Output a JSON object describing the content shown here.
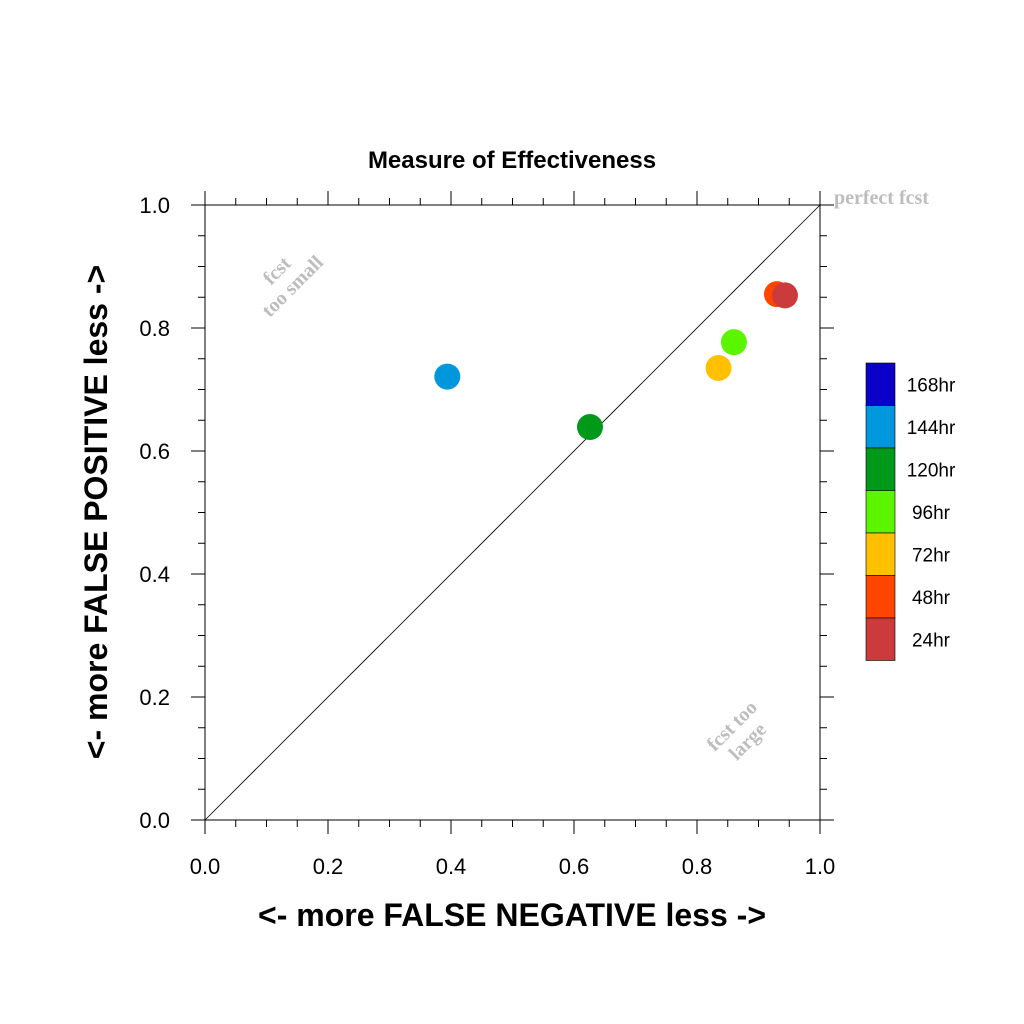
{
  "chart_data": {
    "type": "scatter",
    "title": "Measure of Effectiveness",
    "xlabel": "<- more   FALSE NEGATIVE   less ->",
    "ylabel": "<- more   FALSE POSITIVE   less ->",
    "xlim": [
      0.0,
      1.0
    ],
    "ylim": [
      0.0,
      1.0
    ],
    "x_ticks": [
      "0.0",
      "0.2",
      "0.4",
      "0.6",
      "0.8",
      "1.0"
    ],
    "y_ticks": [
      "0.0",
      "0.2",
      "0.4",
      "0.6",
      "0.8",
      "1.0"
    ],
    "reference_line": {
      "from": [
        0,
        0
      ],
      "to": [
        1,
        1
      ]
    },
    "annotations": [
      {
        "text": "perfect fcst",
        "x": 1.0,
        "y": 1.0
      },
      {
        "lines": [
          "fcst",
          "too small"
        ],
        "x": 0.13,
        "y": 0.88
      },
      {
        "lines": [
          "fcst too",
          "large"
        ],
        "x": 0.87,
        "y": 0.14
      }
    ],
    "series": [
      {
        "name": "24hr",
        "color": "#cc3b3b",
        "x": 0.943,
        "y": 0.853
      },
      {
        "name": "48hr",
        "color": "#ff4500",
        "x": 0.93,
        "y": 0.855
      },
      {
        "name": "72hr",
        "color": "#ffc000",
        "x": 0.835,
        "y": 0.735
      },
      {
        "name": "96hr",
        "color": "#5cf500",
        "x": 0.86,
        "y": 0.777
      },
      {
        "name": "120hr",
        "color": "#00991a",
        "x": 0.626,
        "y": 0.639
      },
      {
        "name": "144hr",
        "color": "#0097dc",
        "x": 0.394,
        "y": 0.721
      }
    ],
    "legend": {
      "placement": "right",
      "entries": [
        {
          "label": "168hr",
          "color": "#0a00c8"
        },
        {
          "label": "144hr",
          "color": "#0097dc"
        },
        {
          "label": "120hr",
          "color": "#00991a"
        },
        {
          "label": "96hr",
          "color": "#5cf500"
        },
        {
          "label": "72hr",
          "color": "#ffc000"
        },
        {
          "label": "48hr",
          "color": "#ff4500"
        },
        {
          "label": "24hr",
          "color": "#cc3b3b"
        }
      ]
    }
  }
}
